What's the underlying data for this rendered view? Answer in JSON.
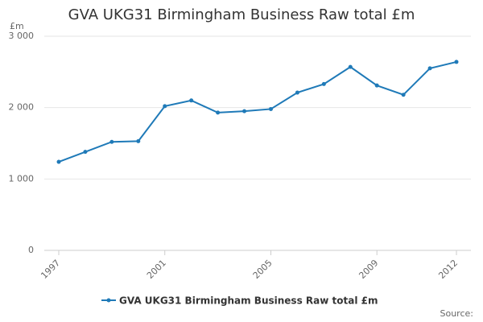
{
  "chart_data": {
    "type": "line",
    "title": "GVA UKG31 Birmingham Business Raw total £m",
    "y_label": "£m",
    "source": "Source:",
    "x": [
      1997,
      1998,
      1999,
      2000,
      2001,
      2002,
      2003,
      2004,
      2005,
      2006,
      2007,
      2008,
      2009,
      2010,
      2011,
      2012
    ],
    "series": [
      {
        "name": "GVA UKG31 Birmingham Business Raw total £m",
        "color": "#1f7ab8",
        "values": [
          1240,
          1380,
          1520,
          1530,
          2020,
          2100,
          1930,
          1950,
          1980,
          2210,
          2330,
          2570,
          2310,
          2180,
          2550,
          2640
        ]
      }
    ],
    "xlim": [
      1997,
      2012
    ],
    "xticks": [
      1997,
      2001,
      2005,
      2009,
      2012
    ],
    "ylim": [
      0,
      3000
    ],
    "yticks": [
      0,
      {
        "value": 1000,
        "label": "1 000"
      },
      {
        "value": 2000,
        "label": "2 000"
      },
      {
        "value": 3000,
        "label": "3 000"
      }
    ],
    "grid": true
  }
}
